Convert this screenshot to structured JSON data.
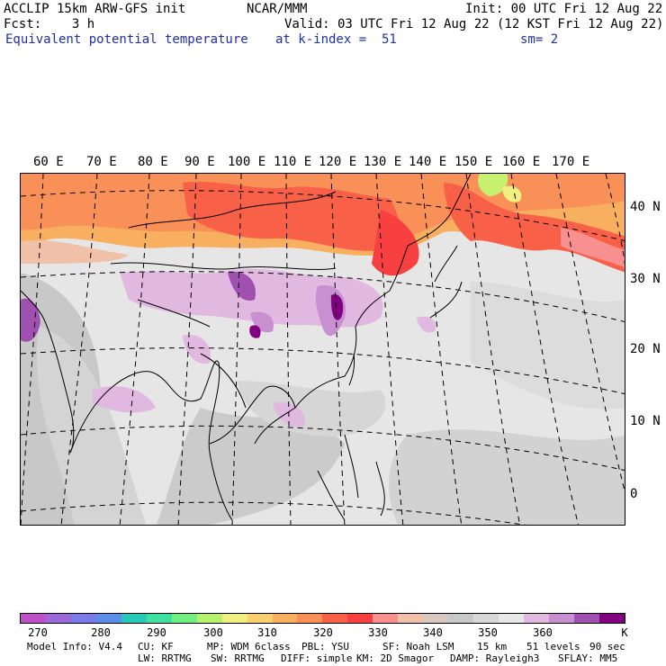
{
  "header": {
    "line1_left": "ACCLIP 15km ARW-GFS init",
    "line1_center": "NCAR/MMM",
    "line1_right": "Init: 00 UTC Fri 12 Aug 22",
    "line2_left": "Fcst:    3 h",
    "line2_right": "Valid: 03 UTC Fri 12 Aug 22 (12 KST Fri 12 Aug 22)",
    "line3_left": "Equivalent potential temperature",
    "line3_center": "at k-index =  51",
    "line3_right": "sm= 2"
  },
  "longitude_labels": [
    "60 E",
    "70 E",
    "80 E",
    "90 E",
    "100 E",
    "110 E",
    "120 E",
    "130 E",
    "140 E",
    "150 E",
    "160 E",
    "170 E"
  ],
  "latitude_labels": [
    "40 N",
    "30 N",
    "20 N",
    "10 N",
    "0"
  ],
  "colorbar": {
    "colors": [
      "#c050c8",
      "#9b6ad8",
      "#7a7ae8",
      "#5a8ee8",
      "#28c8b8",
      "#40e0a0",
      "#70f080",
      "#b8f070",
      "#f0f080",
      "#f8d070",
      "#f8b060",
      "#f89058",
      "#f86048",
      "#f84040",
      "#f89090",
      "#f0c0a8",
      "#d8c8c0",
      "#c8c8c8",
      "#d8d8d8",
      "#e8e8e8",
      "#e0b8e0",
      "#c890d0",
      "#a050b0",
      "#800080"
    ],
    "tick_labels": [
      "270",
      "280",
      "290",
      "300",
      "310",
      "320",
      "330",
      "340",
      "350",
      "360"
    ],
    "unit": "K"
  },
  "footer": {
    "line1": [
      "Model Info: V4.4",
      "CU: KF",
      "MP: WDM 6class",
      "PBL: YSU",
      "SF: Noah LSM",
      "15 km",
      "51 levels",
      "90 sec"
    ],
    "line2": [
      "LW: RRTMG",
      "SW: RRTMG",
      "DIFF: simple",
      "KM: 2D Smagor",
      "DAMP: Rayleigh3",
      "SFLAY: MM5"
    ]
  }
}
